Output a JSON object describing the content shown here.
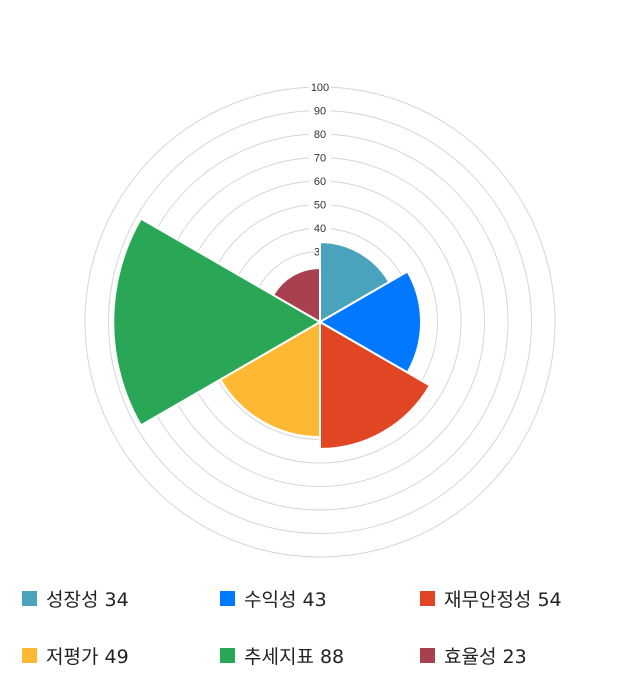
{
  "chart_data": {
    "type": "polar-area",
    "rlim": [
      0,
      100
    ],
    "ticks": [
      10,
      20,
      30,
      40,
      50,
      60,
      70,
      80,
      90,
      100
    ],
    "tick_labels_shown": [
      "3",
      "40",
      "50",
      "60",
      "70",
      "80",
      "90",
      "100"
    ],
    "grid": true,
    "legend_position": "bottom",
    "categories": [
      "성장성",
      "수익성",
      "재무안정성",
      "저평가",
      "추세지표",
      "효율성"
    ],
    "values": [
      34,
      43,
      54,
      49,
      88,
      23
    ],
    "colors": [
      "#4aa3bc",
      "#0078ff",
      "#e04524",
      "#ffb833",
      "#2aa756",
      "#a8404f"
    ],
    "legend_labels": [
      "성장성 34",
      "수익성 43",
      "재무안정성 54",
      "저평가 49",
      "추세지표 88",
      "효율성 23"
    ]
  }
}
